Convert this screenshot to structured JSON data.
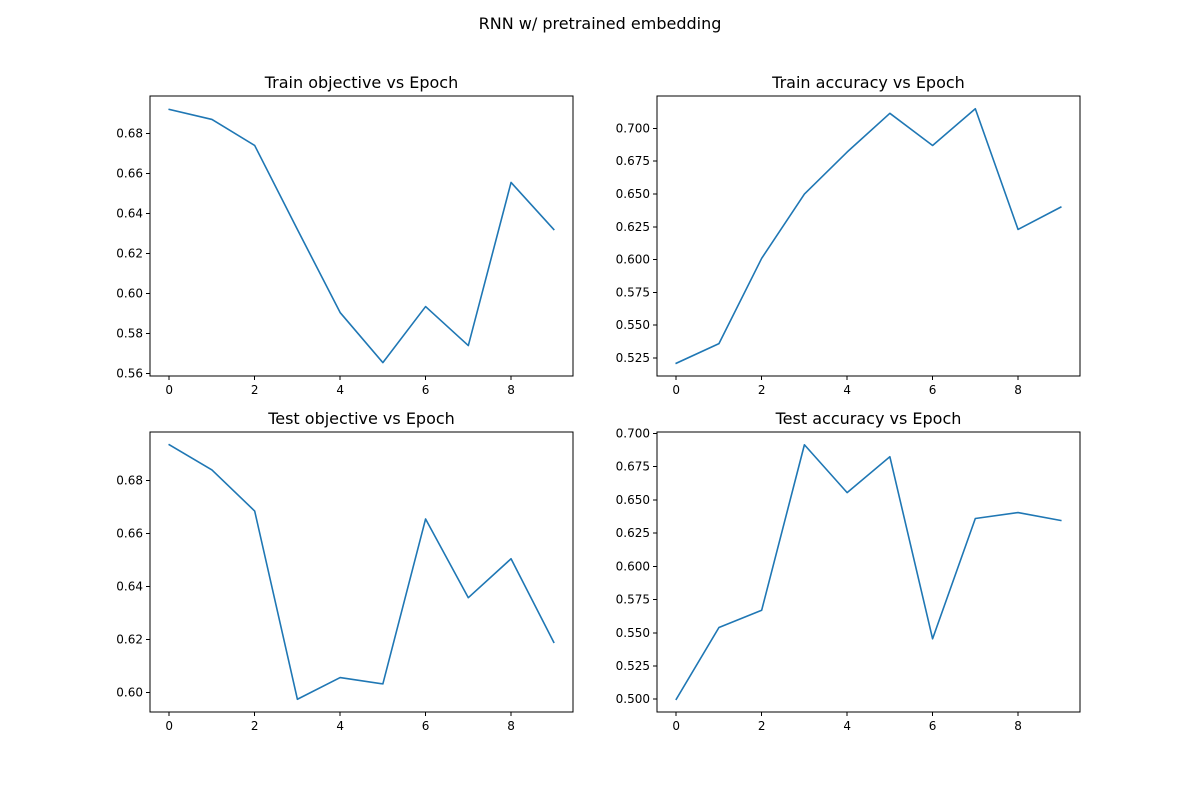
{
  "figure": {
    "suptitle": "RNN w/ pretrained embedding",
    "line_color": "#1f77b4"
  },
  "chart_data": [
    {
      "type": "line",
      "title": "Train objective vs Epoch",
      "xlabel": "",
      "ylabel": "",
      "x": [
        0,
        1,
        2,
        3,
        4,
        5,
        6,
        7,
        8,
        9
      ],
      "values": [
        0.692,
        0.687,
        0.674,
        0.632,
        0.5905,
        0.5655,
        0.5935,
        0.574,
        0.6555,
        0.632
      ],
      "xlim": [
        -0.45,
        9.45
      ],
      "ylim": [
        0.5588,
        0.6987
      ],
      "xticks": [
        0,
        2,
        4,
        6,
        8
      ],
      "xtick_labels": [
        "0",
        "2",
        "4",
        "6",
        "8"
      ],
      "yticks": [
        0.56,
        0.58,
        0.6,
        0.62,
        0.64,
        0.66,
        0.68
      ],
      "ytick_labels": [
        "0.56",
        "0.58",
        "0.60",
        "0.62",
        "0.64",
        "0.66",
        "0.68"
      ],
      "grid": false
    },
    {
      "type": "line",
      "title": "Train accuracy vs Epoch",
      "xlabel": "",
      "ylabel": "",
      "x": [
        0,
        1,
        2,
        3,
        4,
        5,
        6,
        7,
        8,
        9
      ],
      "values": [
        0.521,
        0.536,
        0.601,
        0.65,
        0.682,
        0.7115,
        0.687,
        0.715,
        0.623,
        0.64
      ],
      "xlim": [
        -0.45,
        9.45
      ],
      "ylim": [
        0.5113,
        0.7247
      ],
      "xticks": [
        0,
        2,
        4,
        6,
        8
      ],
      "xtick_labels": [
        "0",
        "2",
        "4",
        "6",
        "8"
      ],
      "yticks": [
        0.525,
        0.55,
        0.575,
        0.6,
        0.625,
        0.65,
        0.675,
        0.7
      ],
      "ytick_labels": [
        "0.525",
        "0.550",
        "0.575",
        "0.600",
        "0.625",
        "0.650",
        "0.675",
        "0.700"
      ],
      "grid": false
    },
    {
      "type": "line",
      "title": "Test objective vs Epoch",
      "xlabel": "",
      "ylabel": "",
      "x": [
        0,
        1,
        2,
        3,
        4,
        5,
        6,
        7,
        8,
        9
      ],
      "values": [
        0.6935,
        0.684,
        0.6685,
        0.5975,
        0.6057,
        0.6033,
        0.6655,
        0.6358,
        0.6505,
        0.619
      ],
      "xlim": [
        -0.45,
        9.45
      ],
      "ylim": [
        0.5927,
        0.6983
      ],
      "xticks": [
        0,
        2,
        4,
        6,
        8
      ],
      "xtick_labels": [
        "0",
        "2",
        "4",
        "6",
        "8"
      ],
      "yticks": [
        0.6,
        0.62,
        0.64,
        0.66,
        0.68
      ],
      "ytick_labels": [
        "0.60",
        "0.62",
        "0.64",
        "0.66",
        "0.68"
      ],
      "grid": false
    },
    {
      "type": "line",
      "title": "Test accuracy vs Epoch",
      "xlabel": "",
      "ylabel": "",
      "x": [
        0,
        1,
        2,
        3,
        4,
        5,
        6,
        7,
        8,
        9
      ],
      "values": [
        0.5,
        0.554,
        0.567,
        0.6915,
        0.6555,
        0.6825,
        0.5455,
        0.636,
        0.6405,
        0.6345
      ],
      "xlim": [
        -0.45,
        9.45
      ],
      "ylim": [
        0.4904,
        0.7011
      ],
      "xticks": [
        0,
        2,
        4,
        6,
        8
      ],
      "xtick_labels": [
        "0",
        "2",
        "4",
        "6",
        "8"
      ],
      "yticks": [
        0.5,
        0.525,
        0.55,
        0.575,
        0.6,
        0.625,
        0.65,
        0.675,
        0.7
      ],
      "ytick_labels": [
        "0.500",
        "0.525",
        "0.550",
        "0.575",
        "0.600",
        "0.625",
        "0.650",
        "0.675",
        "0.700"
      ],
      "grid": false
    }
  ]
}
